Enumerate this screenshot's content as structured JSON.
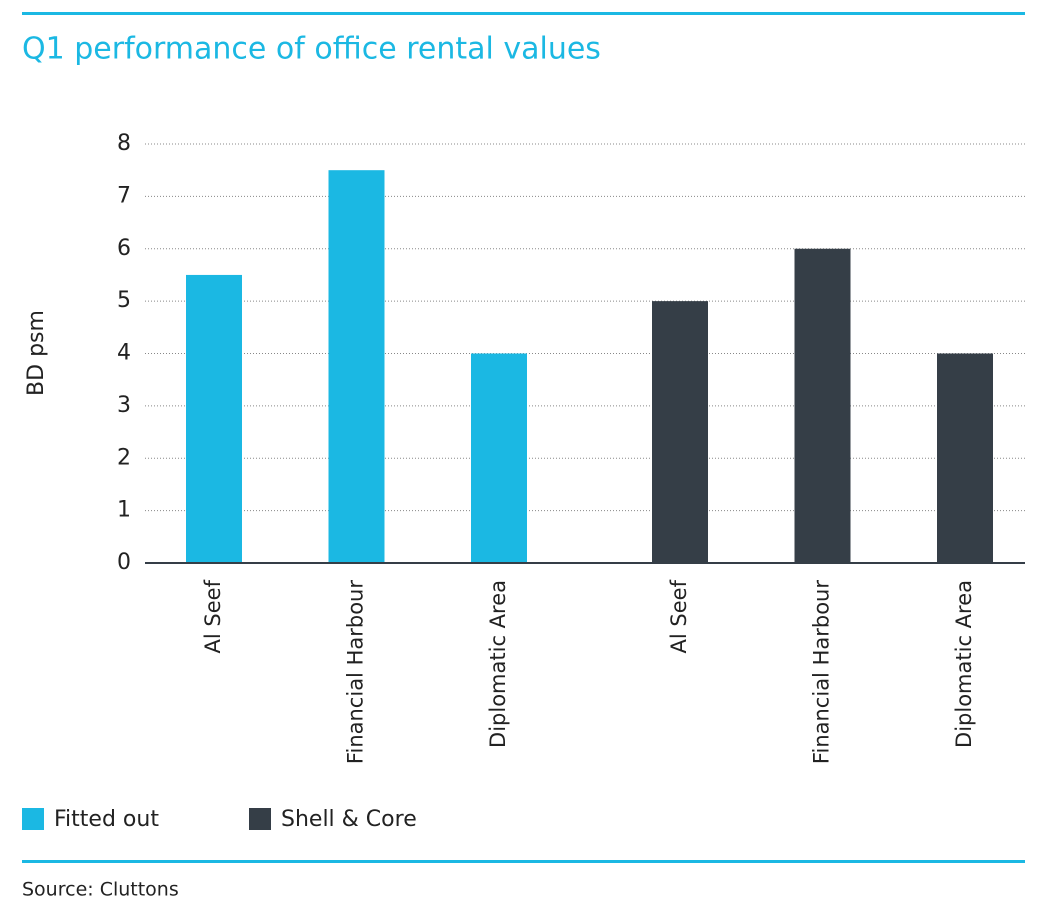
{
  "chart_data": {
    "type": "bar",
    "title": "Q1 performance of office rental values",
    "y_label": "BD psm",
    "source": "Source: Cluttons",
    "categories": [
      "Al Seef",
      "Financial Harbour",
      "Diplomatic Area",
      "Al Seef",
      "Financial Harbour",
      "Diplomatic Area"
    ],
    "series": [
      {
        "name": "Fitted out",
        "color": "#1bb8e3",
        "values": [
          5.5,
          7.5,
          4,
          null,
          null,
          null
        ]
      },
      {
        "name": "Shell & Core",
        "color": "#353e47",
        "values": [
          null,
          null,
          null,
          5,
          6,
          4
        ]
      }
    ],
    "ylim": [
      0,
      8
    ],
    "yticks": [
      0,
      1,
      2,
      3,
      4,
      5,
      6,
      7,
      8
    ],
    "grid": true
  }
}
